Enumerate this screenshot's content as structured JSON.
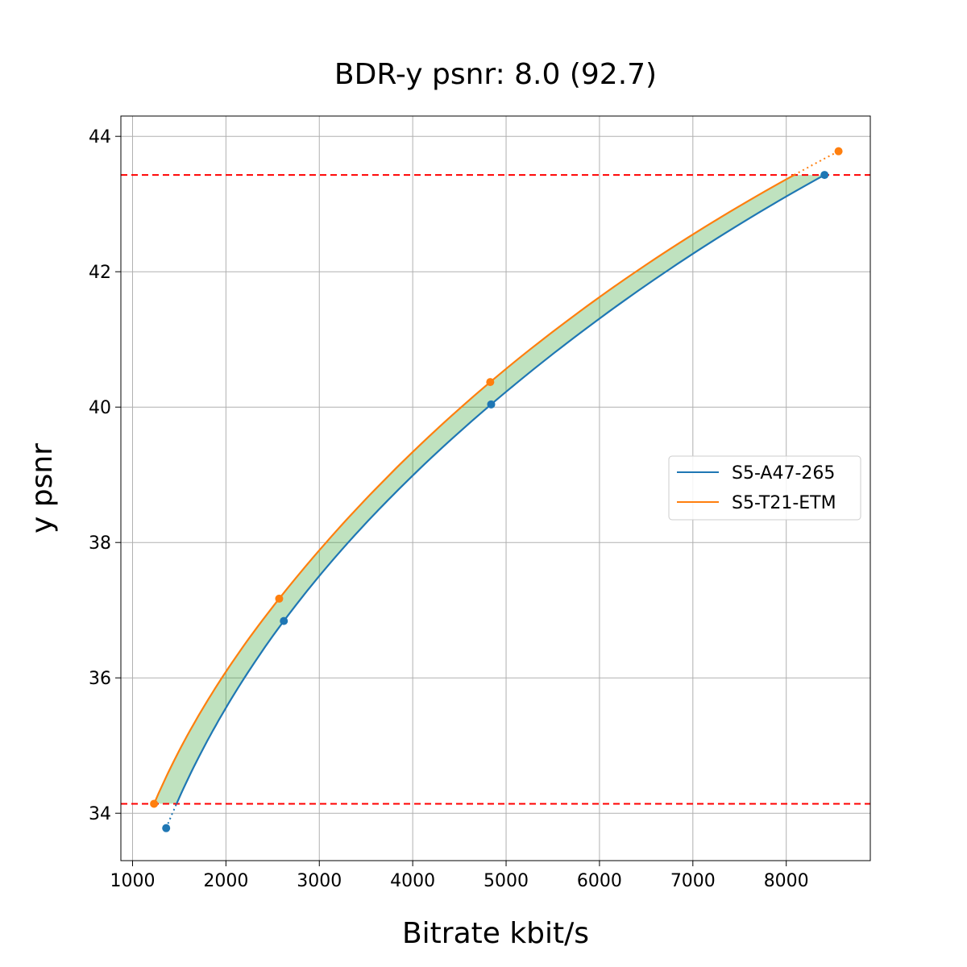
{
  "chart_data": {
    "type": "line",
    "title": "BDR-y psnr: 8.0 (92.7)",
    "xlabel": "Bitrate kbit/s",
    "ylabel": "y psnr",
    "xlim": [
      875,
      8900
    ],
    "ylim": [
      33.3,
      44.3
    ],
    "xticks": [
      1000,
      2000,
      3000,
      4000,
      5000,
      6000,
      7000,
      8000
    ],
    "yticks": [
      34,
      36,
      38,
      40,
      42,
      44
    ],
    "grid": true,
    "legend_position": "center-right",
    "series": [
      {
        "name": "S5-A47-265",
        "color": "#1f77b4",
        "points": [
          [
            1360,
            33.78
          ],
          [
            2620,
            36.84
          ],
          [
            4840,
            40.04
          ],
          [
            8410,
            43.43
          ]
        ]
      },
      {
        "name": "S5-T21-ETM",
        "color": "#ff7f0e",
        "points": [
          [
            1230,
            34.14
          ],
          [
            2570,
            37.17
          ],
          [
            4830,
            40.37
          ],
          [
            8560,
            43.78
          ]
        ]
      }
    ],
    "reference_lines": [
      {
        "axis": "y",
        "value": 43.43,
        "color": "#ff0000",
        "style": "dashed"
      },
      {
        "axis": "y",
        "value": 34.14,
        "color": "#ff0000",
        "style": "dashed"
      }
    ],
    "fill_between_color": "#2ca02c"
  }
}
